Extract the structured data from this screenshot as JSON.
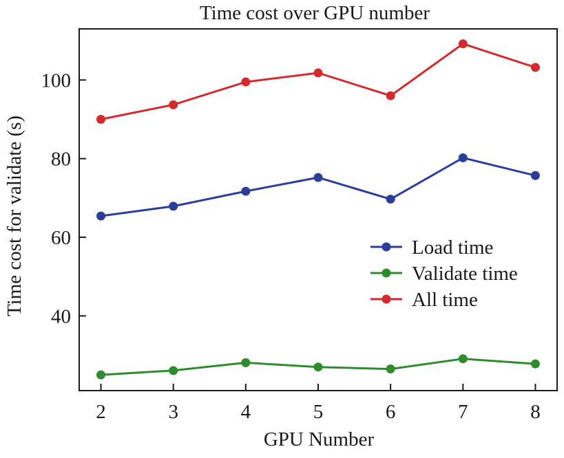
{
  "chart_data": {
    "type": "line",
    "title": "Time cost over GPU number",
    "xlabel": "GPU Number",
    "ylabel": "Time cost for validate (s)",
    "x": [
      2,
      3,
      4,
      5,
      6,
      7,
      8
    ],
    "xlim": [
      1.7,
      8.3
    ],
    "ylim": [
      21,
      113
    ],
    "xticks": [
      "2",
      "3",
      "4",
      "5",
      "6",
      "7",
      "8"
    ],
    "yticks": [
      "40",
      "60",
      "80",
      "100"
    ],
    "grid": false,
    "legend_position": "right",
    "series": [
      {
        "name": "Load time",
        "color": "#2b3f99",
        "values": [
          65.4,
          67.9,
          71.7,
          75.2,
          69.7,
          80.2,
          75.7
        ]
      },
      {
        "name": "Validate time",
        "color": "#2e8b2e",
        "values": [
          25.0,
          26.1,
          28.1,
          27.0,
          26.5,
          29.1,
          27.8
        ]
      },
      {
        "name": "All time",
        "color": "#d42a2f",
        "values": [
          90.0,
          93.7,
          99.5,
          101.8,
          96.0,
          109.2,
          103.2
        ]
      }
    ]
  }
}
